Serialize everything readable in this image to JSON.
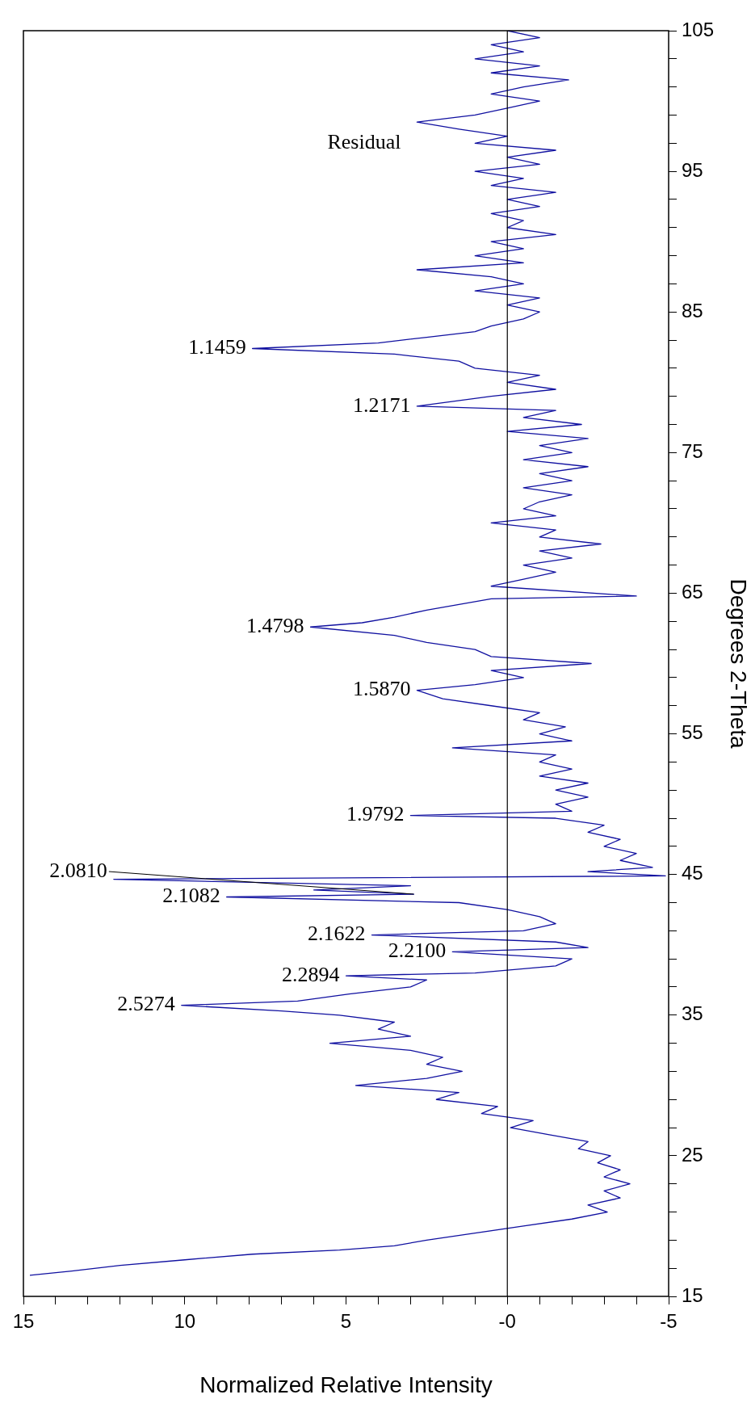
{
  "chart_data": {
    "type": "line",
    "xlabel": "Normalized Relative Intensity",
    "ylabel": "Degrees 2-Theta",
    "color": "#1010a0",
    "x": [
      14.8,
      13.5,
      12,
      10,
      7.9,
      5.2,
      3.5,
      2.5,
      1,
      -0.5,
      -2,
      -3.1,
      -2.5,
      -3.5,
      -3,
      -3.8,
      -3,
      -3.5,
      -2.8,
      -3.2,
      -2.2,
      -2.5,
      -1.3,
      -0.1,
      -0.8,
      0.8,
      0.3,
      2.2,
      1.5,
      4.7,
      2.5,
      1.4,
      2.5,
      2,
      3,
      5.5,
      3,
      4,
      3.5,
      5.2,
      7,
      10.1,
      6.5,
      4.9,
      3,
      2.5,
      5.0,
      1,
      -1.5,
      -2,
      1.7,
      -2.5,
      -1.5,
      4.2,
      -0.5,
      -1.5,
      -1,
      0,
      1.5,
      8.7,
      2.9,
      6,
      3,
      12.2,
      -4.9,
      -2.5,
      -4.5,
      -3.5,
      -4,
      -3,
      -3.5,
      -2.5,
      -3,
      -1.5,
      3.0,
      -2,
      -1.5,
      -2.5,
      -1.5,
      -2.5,
      -1,
      -2,
      -1,
      -1.5,
      1.7,
      -2,
      -1,
      -1.8,
      -0.5,
      -1,
      0.5,
      2,
      2.8,
      1,
      -0.5,
      0.5,
      -2.6,
      0.5,
      1,
      2.5,
      3.5,
      6.1,
      4.5,
      3.5,
      2.5,
      1.5,
      0.5,
      -4.0,
      0.5,
      -0.5,
      -1.5,
      -0.5,
      -2,
      -1,
      -2.9,
      -1,
      -1.5,
      0.5,
      -1.5,
      -0.5,
      -1,
      -2,
      -0.5,
      -2,
      -1,
      -2.5,
      -0.5,
      -2,
      -1,
      -2.5,
      0,
      -2.3,
      -0.5,
      -1.5,
      2.8,
      0.5,
      -1.5,
      0,
      -1,
      1,
      1.5,
      3.5,
      7.9,
      4,
      2.5,
      1,
      0.5,
      -0.5,
      -1,
      0,
      -1,
      1,
      -0.5,
      0.5,
      2.8,
      -0.5,
      1,
      -0.5,
      0.5,
      -1.5,
      0,
      -0.5,
      0.5,
      -1,
      0,
      -1.5,
      0.5,
      -0.5,
      1,
      -1,
      0,
      -1.5,
      1,
      0,
      1.5,
      2.8,
      1,
      0,
      -1,
      0.5,
      -0.5,
      -1.9,
      0.5,
      -1,
      1,
      -0.5,
      0.5,
      -1,
      0
    ],
    "values": [
      16.5,
      16.8,
      17.2,
      17.6,
      18.0,
      18.3,
      18.6,
      19.0,
      19.5,
      20.0,
      20.5,
      21.0,
      21.5,
      22.0,
      22.5,
      23.0,
      23.5,
      24.0,
      24.5,
      25.0,
      25.5,
      26.0,
      26.5,
      27.0,
      27.5,
      28.0,
      28.5,
      29.0,
      29.5,
      30.0,
      30.5,
      31.0,
      31.5,
      32.0,
      32.5,
      33.0,
      33.5,
      34.0,
      34.5,
      35.0,
      35.3,
      35.7,
      36.0,
      36.5,
      37.0,
      37.5,
      37.8,
      38.0,
      38.5,
      39.0,
      39.5,
      39.8,
      40.2,
      40.7,
      41.0,
      41.5,
      42.0,
      42.5,
      43.0,
      43.4,
      43.6,
      43.9,
      44.2,
      44.66,
      44.9,
      45.2,
      45.5,
      46.0,
      46.5,
      47.0,
      47.5,
      48.0,
      48.5,
      49.0,
      49.2,
      49.5,
      50.0,
      50.5,
      51.0,
      51.5,
      52.0,
      52.5,
      53.0,
      53.5,
      54.0,
      54.5,
      55.0,
      55.5,
      56.0,
      56.5,
      57.0,
      57.5,
      58.1,
      58.5,
      59.0,
      59.5,
      60.0,
      60.5,
      61.0,
      61.5,
      62.0,
      62.6,
      62.9,
      63.3,
      63.8,
      64.2,
      64.6,
      64.8,
      65.5,
      66.0,
      66.5,
      67.0,
      67.5,
      68.0,
      68.5,
      69.0,
      69.5,
      70.0,
      70.5,
      71.0,
      71.5,
      72.0,
      72.5,
      73.0,
      73.5,
      74.0,
      74.5,
      75.0,
      75.5,
      76.0,
      76.5,
      77.0,
      77.5,
      78.0,
      78.3,
      79.0,
      79.5,
      80.0,
      80.5,
      81.0,
      81.5,
      82.0,
      82.4,
      82.8,
      83.2,
      83.6,
      84.0,
      84.5,
      85.0,
      85.5,
      86.0,
      86.5,
      87.0,
      87.5,
      88.0,
      88.5,
      89.0,
      89.5,
      90.0,
      90.5,
      91.0,
      91.5,
      92.0,
      92.5,
      93.0,
      93.5,
      94.0,
      94.5,
      95.0,
      95.5,
      96.0,
      96.5,
      97.0,
      97.5,
      98.0,
      98.5,
      99.0,
      99.5,
      100.0,
      100.5,
      101.0,
      101.5,
      102.0,
      102.5,
      103.0,
      103.5,
      104.0,
      104.5,
      105.0
    ],
    "xlim": [
      15,
      -5
    ],
    "ylim": [
      15,
      105
    ],
    "xticks": [
      -5,
      {
        "value": -4,
        "label": null
      },
      {
        "value": -3,
        "label": null
      },
      {
        "value": -2,
        "label": null
      },
      {
        "value": -1,
        "label": null
      },
      {
        "value": 0,
        "label": "-0"
      },
      {
        "value": 1,
        "label": null
      },
      {
        "value": 2,
        "label": null
      },
      {
        "value": 3,
        "label": null
      },
      {
        "value": 4,
        "label": null
      },
      5,
      {
        "value": 6,
        "label": null
      },
      {
        "value": 7,
        "label": null
      },
      {
        "value": 8,
        "label": null
      },
      {
        "value": 9,
        "label": null
      },
      10,
      {
        "value": 11,
        "label": null
      },
      {
        "value": 12,
        "label": null
      },
      {
        "value": 13,
        "label": null
      },
      {
        "value": 14,
        "label": null
      },
      15
    ],
    "yticks": [
      15,
      {
        "value": 17,
        "label": null
      },
      {
        "value": 19,
        "label": null
      },
      {
        "value": 21,
        "label": null
      },
      {
        "value": 23,
        "label": null
      },
      25,
      {
        "value": 27,
        "label": null
      },
      {
        "value": 29,
        "label": null
      },
      {
        "value": 31,
        "label": null
      },
      {
        "value": 33,
        "label": null
      },
      35,
      {
        "value": 37,
        "label": null
      },
      {
        "value": 39,
        "label": null
      },
      {
        "value": 41,
        "label": null
      },
      {
        "value": 43,
        "label": null
      },
      45,
      {
        "value": 47,
        "label": null
      },
      {
        "value": 49,
        "label": null
      },
      {
        "value": 51,
        "label": null
      },
      {
        "value": 53,
        "label": null
      },
      55,
      {
        "value": 57,
        "label": null
      },
      {
        "value": 59,
        "label": null
      },
      {
        "value": 61,
        "label": null
      },
      {
        "value": 63,
        "label": null
      },
      65,
      {
        "value": 67,
        "label": null
      },
      {
        "value": 69,
        "label": null
      },
      {
        "value": 71,
        "label": null
      },
      {
        "value": 73,
        "label": null
      },
      75,
      {
        "value": 77,
        "label": null
      },
      {
        "value": 79,
        "label": null
      },
      {
        "value": 81,
        "label": null
      },
      {
        "value": 83,
        "label": null
      },
      85,
      {
        "value": 87,
        "label": null
      },
      {
        "value": 89,
        "label": null
      },
      {
        "value": 91,
        "label": null
      },
      {
        "value": 93,
        "label": null
      },
      95,
      {
        "value": 97,
        "label": null
      },
      {
        "value": 99,
        "label": null
      },
      {
        "value": 101,
        "label": null
      },
      {
        "value": 103,
        "label": null
      },
      105
    ],
    "ref_lines": [
      {
        "axis": "x",
        "value": 0,
        "color": "#000000"
      }
    ],
    "annotations": [
      {
        "text": "2.5274",
        "x": 10.1,
        "y": 35.7
      },
      {
        "text": "2.2894",
        "x": 5.0,
        "y": 37.8
      },
      {
        "text": "2.2100",
        "x": 1.7,
        "y": 39.5
      },
      {
        "text": "2.1622",
        "x": 4.2,
        "y": 40.7
      },
      {
        "text": "2.1082",
        "x": 8.7,
        "y": 43.4
      },
      {
        "text": "2.0810",
        "x": 2.9,
        "y": 43.6
      },
      {
        "text": "1.9792",
        "x": 3.0,
        "y": 49.2
      },
      {
        "text": "1.5870",
        "x": 2.8,
        "y": 58.1
      },
      {
        "text": "1.4798",
        "x": 6.1,
        "y": 62.6
      },
      {
        "text": "1.2171",
        "x": 2.8,
        "y": 78.3
      },
      {
        "text": "1.1459",
        "x": 7.9,
        "y": 82.4
      },
      "Residual"
    ],
    "grid": false,
    "legend": false
  }
}
